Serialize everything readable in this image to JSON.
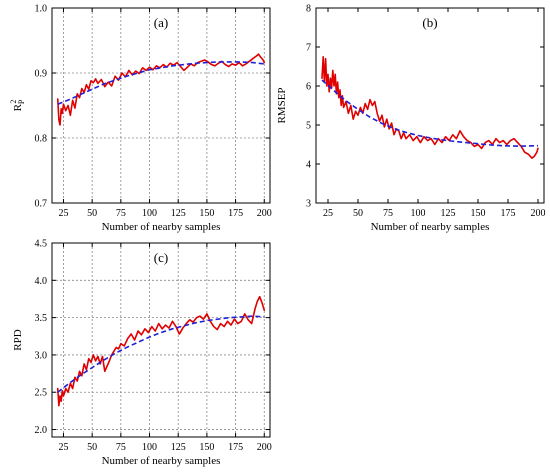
{
  "chart_data": [
    {
      "type": "line",
      "panel": "(a)",
      "title": "(a)",
      "xlabel": "Number of nearby samples",
      "ylabel": "R",
      "ylabel_sup": "2",
      "ylabel_sub": "P",
      "xlim": [
        15,
        205
      ],
      "ylim": [
        0.7,
        1.0
      ],
      "xticks": [
        25,
        50,
        75,
        100,
        125,
        150,
        175,
        200
      ],
      "yticks": [
        0.7,
        0.8,
        0.9,
        1.0
      ],
      "ytick_labels": [
        "0.7",
        "0.8",
        "0.9",
        "1.0"
      ],
      "grid": true,
      "series": [
        {
          "style": "solid",
          "color": "#e00000",
          "x": [
            20,
            21,
            22,
            23,
            24,
            25,
            27,
            29,
            31,
            33,
            35,
            37,
            39,
            41,
            43,
            45,
            47,
            49,
            51,
            53,
            55,
            58,
            61,
            64,
            67,
            70,
            73,
            76,
            79,
            82,
            85,
            88,
            91,
            94,
            97,
            100,
            103,
            106,
            109,
            112,
            115,
            118,
            121,
            124,
            127,
            130,
            133,
            136,
            139,
            142,
            145,
            148,
            151,
            154,
            157,
            160,
            163,
            166,
            169,
            172,
            175,
            178,
            181,
            184,
            187,
            190,
            193,
            195,
            197,
            199,
            200
          ],
          "y": [
            0.86,
            0.828,
            0.82,
            0.845,
            0.838,
            0.852,
            0.842,
            0.85,
            0.835,
            0.858,
            0.846,
            0.868,
            0.862,
            0.876,
            0.87,
            0.882,
            0.875,
            0.888,
            0.885,
            0.891,
            0.884,
            0.89,
            0.879,
            0.886,
            0.88,
            0.895,
            0.889,
            0.9,
            0.894,
            0.904,
            0.897,
            0.903,
            0.899,
            0.908,
            0.904,
            0.909,
            0.905,
            0.911,
            0.908,
            0.913,
            0.909,
            0.915,
            0.912,
            0.916,
            0.91,
            0.904,
            0.909,
            0.914,
            0.911,
            0.916,
            0.918,
            0.92,
            0.917,
            0.913,
            0.911,
            0.915,
            0.918,
            0.913,
            0.91,
            0.914,
            0.912,
            0.916,
            0.911,
            0.914,
            0.918,
            0.922,
            0.926,
            0.929,
            0.924,
            0.92,
            0.916
          ]
        },
        {
          "style": "dashed",
          "color": "#2020d8",
          "x": [
            20,
            30,
            40,
            50,
            60,
            70,
            80,
            90,
            100,
            110,
            120,
            130,
            140,
            150,
            160,
            170,
            180,
            190,
            200
          ],
          "y": [
            0.852,
            0.859,
            0.867,
            0.875,
            0.883,
            0.889,
            0.895,
            0.9,
            0.905,
            0.908,
            0.911,
            0.913,
            0.915,
            0.916,
            0.917,
            0.917,
            0.917,
            0.916,
            0.914
          ]
        }
      ]
    },
    {
      "type": "line",
      "panel": "(b)",
      "title": "(b)",
      "xlabel": "Number of nearby samples",
      "ylabel": "RMSEP",
      "xlim": [
        15,
        205
      ],
      "ylim": [
        3,
        8
      ],
      "xticks": [
        25,
        50,
        75,
        100,
        125,
        150,
        175,
        200
      ],
      "yticks": [
        3,
        4,
        5,
        6,
        7,
        8
      ],
      "ytick_labels": [
        "3",
        "4",
        "5",
        "6",
        "7",
        "8"
      ],
      "grid": false,
      "series": [
        {
          "style": "solid",
          "color": "#e00000",
          "x": [
            20,
            21,
            22,
            23,
            24,
            25,
            26,
            27,
            28,
            29,
            30,
            31,
            32,
            33,
            34,
            35,
            36,
            37,
            38,
            40,
            42,
            44,
            46,
            48,
            50,
            52,
            54,
            56,
            58,
            60,
            62,
            64,
            66,
            68,
            70,
            72,
            74,
            76,
            78,
            80,
            82,
            84,
            86,
            88,
            90,
            93,
            96,
            99,
            102,
            105,
            108,
            111,
            114,
            117,
            120,
            123,
            126,
            129,
            132,
            135,
            138,
            141,
            144,
            147,
            150,
            153,
            156,
            159,
            162,
            165,
            168,
            171,
            174,
            177,
            180,
            183,
            186,
            189,
            192,
            195,
            197,
            199,
            200
          ],
          "y": [
            6.2,
            6.75,
            6.1,
            6.7,
            6.0,
            6.3,
            5.85,
            6.2,
            5.95,
            6.4,
            6.0,
            6.3,
            5.8,
            6.1,
            5.7,
            5.9,
            5.5,
            5.75,
            5.45,
            5.6,
            5.3,
            5.5,
            5.15,
            5.35,
            5.25,
            5.45,
            5.3,
            5.55,
            5.4,
            5.65,
            5.5,
            5.6,
            5.3,
            5.1,
            5.25,
            4.95,
            5.15,
            4.9,
            5.05,
            4.75,
            4.9,
            4.85,
            4.65,
            4.8,
            4.65,
            4.75,
            4.6,
            4.7,
            4.55,
            4.7,
            4.6,
            4.65,
            4.5,
            4.65,
            4.55,
            4.7,
            4.6,
            4.75,
            4.65,
            4.85,
            4.7,
            4.6,
            4.55,
            4.45,
            4.5,
            4.4,
            4.55,
            4.6,
            4.5,
            4.65,
            4.55,
            4.6,
            4.5,
            4.6,
            4.65,
            4.55,
            4.45,
            4.3,
            4.25,
            4.15,
            4.2,
            4.3,
            4.4
          ]
        },
        {
          "style": "dashed",
          "color": "#2020d8",
          "x": [
            20,
            30,
            40,
            50,
            60,
            70,
            80,
            90,
            100,
            110,
            120,
            130,
            140,
            150,
            160,
            170,
            180,
            190,
            200
          ],
          "y": [
            6.15,
            5.88,
            5.62,
            5.4,
            5.2,
            5.04,
            4.91,
            4.81,
            4.73,
            4.67,
            4.62,
            4.58,
            4.55,
            4.52,
            4.49,
            4.47,
            4.46,
            4.46,
            4.47
          ]
        }
      ]
    },
    {
      "type": "line",
      "panel": "(c)",
      "title": "(c)",
      "xlabel": "Number of nearby samples",
      "ylabel": "RPD",
      "xlim": [
        15,
        205
      ],
      "ylim": [
        1.9,
        4.5
      ],
      "xticks": [
        25,
        50,
        75,
        100,
        125,
        150,
        175,
        200
      ],
      "yticks": [
        2.0,
        2.5,
        3.0,
        3.5,
        4.0,
        4.5
      ],
      "ytick_labels": [
        "2.0",
        "2.5",
        "3.0",
        "3.5",
        "4.0",
        "4.5"
      ],
      "grid": true,
      "series": [
        {
          "style": "solid",
          "color": "#e00000",
          "x": [
            20,
            21,
            22,
            23,
            24,
            25,
            27,
            29,
            31,
            33,
            35,
            37,
            39,
            41,
            43,
            45,
            47,
            49,
            51,
            53,
            55,
            57,
            59,
            61,
            63,
            65,
            67,
            69,
            71,
            73,
            75,
            78,
            81,
            84,
            87,
            90,
            93,
            96,
            99,
            102,
            105,
            108,
            111,
            114,
            117,
            120,
            123,
            126,
            129,
            132,
            135,
            138,
            141,
            144,
            147,
            150,
            153,
            156,
            159,
            162,
            165,
            168,
            171,
            174,
            177,
            180,
            183,
            186,
            189,
            192,
            194,
            196,
            198,
            200
          ],
          "y": [
            2.55,
            2.32,
            2.45,
            2.38,
            2.52,
            2.45,
            2.55,
            2.5,
            2.62,
            2.55,
            2.7,
            2.65,
            2.78,
            2.72,
            2.88,
            2.8,
            2.95,
            2.9,
            3.0,
            2.92,
            2.98,
            2.88,
            2.98,
            2.78,
            2.85,
            2.92,
            3.0,
            3.05,
            3.1,
            3.08,
            3.15,
            3.12,
            3.22,
            3.28,
            3.2,
            3.32,
            3.27,
            3.35,
            3.3,
            3.38,
            3.32,
            3.42,
            3.35,
            3.4,
            3.36,
            3.45,
            3.38,
            3.28,
            3.36,
            3.42,
            3.47,
            3.44,
            3.5,
            3.52,
            3.48,
            3.55,
            3.45,
            3.38,
            3.34,
            3.42,
            3.38,
            3.45,
            3.4,
            3.48,
            3.42,
            3.45,
            3.55,
            3.47,
            3.42,
            3.62,
            3.72,
            3.78,
            3.7,
            3.6
          ]
        },
        {
          "style": "dashed",
          "color": "#2020d8",
          "x": [
            20,
            30,
            40,
            50,
            60,
            70,
            80,
            90,
            100,
            110,
            120,
            130,
            140,
            150,
            160,
            170,
            180,
            190,
            200
          ],
          "y": [
            2.5,
            2.62,
            2.73,
            2.83,
            2.93,
            3.02,
            3.1,
            3.17,
            3.24,
            3.3,
            3.35,
            3.39,
            3.43,
            3.46,
            3.48,
            3.5,
            3.51,
            3.52,
            3.51
          ]
        }
      ]
    }
  ]
}
